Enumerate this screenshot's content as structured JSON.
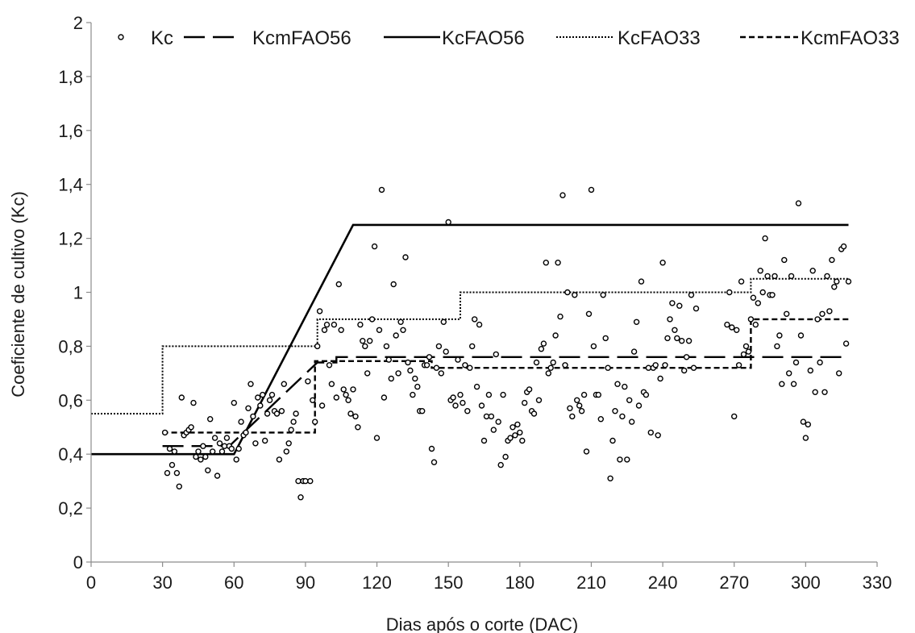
{
  "chart_data": {
    "type": "line",
    "xlabel": "Dias após o corte (DAC)",
    "ylabel": "Coeficiente de cultivo (Kc)",
    "xlim": [
      0,
      330
    ],
    "ylim": [
      0,
      2
    ],
    "x_ticks": [
      0,
      30,
      60,
      90,
      120,
      150,
      180,
      210,
      240,
      270,
      300,
      330
    ],
    "y_ticks": [
      0,
      0.2,
      0.4,
      0.6,
      0.8,
      1,
      1.2,
      1.4,
      1.6,
      1.8,
      2
    ],
    "y_tick_labels": [
      "0",
      "0,2",
      "0,4",
      "0,6",
      "0,8",
      "1",
      "1,2",
      "1,4",
      "1,6",
      "1,8",
      "2"
    ],
    "grid": false,
    "legend_position": "top",
    "series": [
      {
        "name": "Kc",
        "kind": "scatter",
        "points": [
          [
            31,
            0.48
          ],
          [
            32,
            0.33
          ],
          [
            33,
            0.42
          ],
          [
            34,
            0.36
          ],
          [
            35,
            0.41
          ],
          [
            36,
            0.33
          ],
          [
            37,
            0.28
          ],
          [
            38,
            0.61
          ],
          [
            39,
            0.47
          ],
          [
            40,
            0.48
          ],
          [
            41,
            0.49
          ],
          [
            42,
            0.5
          ],
          [
            43,
            0.59
          ],
          [
            44,
            0.39
          ],
          [
            45,
            0.41
          ],
          [
            46,
            0.38
          ],
          [
            47,
            0.43
          ],
          [
            48,
            0.39
          ],
          [
            49,
            0.34
          ],
          [
            50,
            0.53
          ],
          [
            51,
            0.41
          ],
          [
            52,
            0.46
          ],
          [
            53,
            0.32
          ],
          [
            54,
            0.44
          ],
          [
            55,
            0.41
          ],
          [
            56,
            0.43
          ],
          [
            57,
            0.46
          ],
          [
            58,
            0.43
          ],
          [
            59,
            0.42
          ],
          [
            60,
            0.59
          ],
          [
            61,
            0.38
          ],
          [
            62,
            0.42
          ],
          [
            63,
            0.52
          ],
          [
            64,
            0.47
          ],
          [
            65,
            0.48
          ],
          [
            66,
            0.57
          ],
          [
            67,
            0.66
          ],
          [
            68,
            0.54
          ],
          [
            69,
            0.44
          ],
          [
            70,
            0.61
          ],
          [
            71,
            0.58
          ],
          [
            72,
            0.62
          ],
          [
            73,
            0.45
          ],
          [
            74,
            0.55
          ],
          [
            75,
            0.6
          ],
          [
            76,
            0.62
          ],
          [
            77,
            0.56
          ],
          [
            78,
            0.55
          ],
          [
            79,
            0.38
          ],
          [
            80,
            0.56
          ],
          [
            81,
            0.66
          ],
          [
            82,
            0.41
          ],
          [
            83,
            0.44
          ],
          [
            84,
            0.49
          ],
          [
            85,
            0.52
          ],
          [
            86,
            0.55
          ],
          [
            87,
            0.3
          ],
          [
            88,
            0.24
          ],
          [
            89,
            0.3
          ],
          [
            90,
            0.3
          ],
          [
            91,
            0.67
          ],
          [
            92,
            0.3
          ],
          [
            93,
            0.6
          ],
          [
            94,
            0.52
          ],
          [
            95,
            0.8
          ],
          [
            96,
            0.93
          ],
          [
            97,
            0.58
          ],
          [
            98,
            0.86
          ],
          [
            99,
            0.88
          ],
          [
            100,
            0.73
          ],
          [
            101,
            0.66
          ],
          [
            102,
            0.88
          ],
          [
            103,
            0.61
          ],
          [
            104,
            1.03
          ],
          [
            105,
            0.86
          ],
          [
            106,
            0.64
          ],
          [
            107,
            0.62
          ],
          [
            108,
            0.6
          ],
          [
            109,
            0.55
          ],
          [
            110,
            0.64
          ],
          [
            111,
            0.54
          ],
          [
            112,
            0.5
          ],
          [
            113,
            0.88
          ],
          [
            114,
            0.82
          ],
          [
            115,
            0.8
          ],
          [
            116,
            0.7
          ],
          [
            117,
            0.82
          ],
          [
            118,
            0.9
          ],
          [
            119,
            1.17
          ],
          [
            120,
            0.46
          ],
          [
            121,
            0.86
          ],
          [
            122,
            1.38
          ],
          [
            123,
            0.61
          ],
          [
            124,
            0.8
          ],
          [
            125,
            0.75
          ],
          [
            126,
            0.68
          ],
          [
            127,
            1.03
          ],
          [
            128,
            0.84
          ],
          [
            129,
            0.7
          ],
          [
            130,
            0.89
          ],
          [
            131,
            0.86
          ],
          [
            132,
            1.13
          ],
          [
            133,
            0.74
          ],
          [
            134,
            0.71
          ],
          [
            135,
            0.62
          ],
          [
            136,
            0.68
          ],
          [
            137,
            0.65
          ],
          [
            138,
            0.56
          ],
          [
            139,
            0.56
          ],
          [
            140,
            0.73
          ],
          [
            141,
            0.73
          ],
          [
            142,
            0.76
          ],
          [
            143,
            0.42
          ],
          [
            144,
            0.37
          ],
          [
            145,
            0.72
          ],
          [
            146,
            0.8
          ],
          [
            147,
            0.7
          ],
          [
            148,
            0.89
          ],
          [
            149,
            0.78
          ],
          [
            150,
            1.26
          ],
          [
            151,
            0.6
          ],
          [
            152,
            0.61
          ],
          [
            153,
            0.58
          ],
          [
            154,
            0.75
          ],
          [
            155,
            0.62
          ],
          [
            156,
            0.59
          ],
          [
            157,
            0.73
          ],
          [
            158,
            0.56
          ],
          [
            159,
            0.72
          ],
          [
            160,
            0.8
          ],
          [
            161,
            0.9
          ],
          [
            162,
            0.65
          ],
          [
            163,
            0.88
          ],
          [
            164,
            0.58
          ],
          [
            165,
            0.45
          ],
          [
            166,
            0.54
          ],
          [
            167,
            0.62
          ],
          [
            168,
            0.54
          ],
          [
            169,
            0.49
          ],
          [
            170,
            0.77
          ],
          [
            171,
            0.52
          ],
          [
            172,
            0.36
          ],
          [
            173,
            0.62
          ],
          [
            174,
            0.39
          ],
          [
            175,
            0.45
          ],
          [
            176,
            0.46
          ],
          [
            177,
            0.5
          ],
          [
            178,
            0.47
          ],
          [
            179,
            0.51
          ],
          [
            180,
            0.48
          ],
          [
            181,
            0.45
          ],
          [
            182,
            0.59
          ],
          [
            183,
            0.63
          ],
          [
            184,
            0.64
          ],
          [
            185,
            0.56
          ],
          [
            186,
            0.55
          ],
          [
            187,
            0.74
          ],
          [
            188,
            0.6
          ],
          [
            189,
            0.79
          ],
          [
            190,
            0.81
          ],
          [
            191,
            1.11
          ],
          [
            192,
            0.7
          ],
          [
            193,
            0.72
          ],
          [
            194,
            0.74
          ],
          [
            195,
            0.84
          ],
          [
            196,
            1.11
          ],
          [
            197,
            0.91
          ],
          [
            198,
            1.36
          ],
          [
            199,
            0.73
          ],
          [
            200,
            1.0
          ],
          [
            201,
            0.57
          ],
          [
            202,
            0.54
          ],
          [
            203,
            0.99
          ],
          [
            204,
            0.6
          ],
          [
            205,
            0.58
          ],
          [
            206,
            0.56
          ],
          [
            207,
            0.62
          ],
          [
            208,
            0.41
          ],
          [
            209,
            0.92
          ],
          [
            210,
            1.38
          ],
          [
            211,
            0.8
          ],
          [
            212,
            0.62
          ],
          [
            213,
            0.62
          ],
          [
            214,
            0.53
          ],
          [
            215,
            0.99
          ],
          [
            216,
            0.83
          ],
          [
            217,
            0.72
          ],
          [
            218,
            0.31
          ],
          [
            219,
            0.45
          ],
          [
            220,
            0.56
          ],
          [
            221,
            0.66
          ],
          [
            222,
            0.38
          ],
          [
            223,
            0.54
          ],
          [
            224,
            0.65
          ],
          [
            225,
            0.38
          ],
          [
            226,
            0.6
          ],
          [
            227,
            0.52
          ],
          [
            228,
            0.78
          ],
          [
            229,
            0.89
          ],
          [
            230,
            0.58
          ],
          [
            231,
            1.04
          ],
          [
            232,
            0.63
          ],
          [
            233,
            0.62
          ],
          [
            234,
            0.72
          ],
          [
            235,
            0.48
          ],
          [
            236,
            0.72
          ],
          [
            237,
            0.73
          ],
          [
            238,
            0.47
          ],
          [
            239,
            0.68
          ],
          [
            240,
            1.11
          ],
          [
            241,
            0.73
          ],
          [
            242,
            0.83
          ],
          [
            243,
            0.9
          ],
          [
            244,
            0.96
          ],
          [
            245,
            0.86
          ],
          [
            246,
            0.83
          ],
          [
            247,
            0.95
          ],
          [
            248,
            0.82
          ],
          [
            249,
            0.71
          ],
          [
            250,
            0.76
          ],
          [
            251,
            0.82
          ],
          [
            252,
            0.99
          ],
          [
            253,
            0.72
          ],
          [
            254,
            0.94
          ],
          [
            267,
            0.88
          ],
          [
            268,
            1.0
          ],
          [
            269,
            0.87
          ],
          [
            270,
            0.54
          ],
          [
            271,
            0.86
          ],
          [
            272,
            0.73
          ],
          [
            273,
            1.04
          ],
          [
            274,
            0.77
          ],
          [
            275,
            0.8
          ],
          [
            276,
            0.78
          ],
          [
            277,
            0.9
          ],
          [
            278,
            0.98
          ],
          [
            279,
            0.88
          ],
          [
            280,
            0.96
          ],
          [
            281,
            1.08
          ],
          [
            282,
            1.0
          ],
          [
            283,
            1.2
          ],
          [
            284,
            1.06
          ],
          [
            285,
            0.99
          ],
          [
            286,
            0.99
          ],
          [
            287,
            1.06
          ],
          [
            288,
            0.8
          ],
          [
            289,
            0.84
          ],
          [
            290,
            0.66
          ],
          [
            291,
            1.12
          ],
          [
            292,
            0.92
          ],
          [
            293,
            0.7
          ],
          [
            294,
            1.06
          ],
          [
            295,
            0.66
          ],
          [
            296,
            0.74
          ],
          [
            297,
            1.33
          ],
          [
            298,
            0.84
          ],
          [
            299,
            0.52
          ],
          [
            300,
            0.46
          ],
          [
            301,
            0.51
          ],
          [
            302,
            0.71
          ],
          [
            303,
            1.08
          ],
          [
            304,
            0.63
          ],
          [
            305,
            0.9
          ],
          [
            306,
            0.74
          ],
          [
            307,
            0.92
          ],
          [
            308,
            0.63
          ],
          [
            309,
            1.06
          ],
          [
            310,
            0.93
          ],
          [
            311,
            1.12
          ],
          [
            312,
            1.02
          ],
          [
            313,
            1.04
          ],
          [
            314,
            0.7
          ],
          [
            315,
            1.16
          ],
          [
            316,
            1.17
          ],
          [
            317,
            0.81
          ],
          [
            318,
            1.04
          ]
        ]
      },
      {
        "name": "KcmFAO56",
        "kind": "line",
        "style": "long-dash",
        "points": [
          [
            30,
            0.43
          ],
          [
            58,
            0.43
          ],
          [
            95,
            0.74
          ],
          [
            103,
            0.74
          ],
          [
            103,
            0.76
          ],
          [
            318,
            0.76
          ]
        ]
      },
      {
        "name": "KcFAO56",
        "kind": "line",
        "style": "solid",
        "points": [
          [
            0,
            0.4
          ],
          [
            60,
            0.4
          ],
          [
            110,
            1.25
          ],
          [
            318,
            1.25
          ]
        ]
      },
      {
        "name": "KcFAO33",
        "kind": "line",
        "style": "dotted",
        "points": [
          [
            0,
            0.55
          ],
          [
            30,
            0.55
          ],
          [
            30,
            0.8
          ],
          [
            95,
            0.8
          ],
          [
            95,
            0.9
          ],
          [
            155,
            0.9
          ],
          [
            155,
            1.0
          ],
          [
            277,
            1.0
          ],
          [
            277,
            1.05
          ],
          [
            318,
            1.05
          ]
        ]
      },
      {
        "name": "KcmFAO33",
        "kind": "line",
        "style": "short-dash",
        "points": [
          [
            30,
            0.48
          ],
          [
            94,
            0.48
          ],
          [
            94,
            0.745
          ],
          [
            143,
            0.745
          ],
          [
            143,
            0.72
          ],
          [
            277,
            0.72
          ],
          [
            277,
            0.9
          ],
          [
            318,
            0.9
          ]
        ]
      }
    ]
  }
}
